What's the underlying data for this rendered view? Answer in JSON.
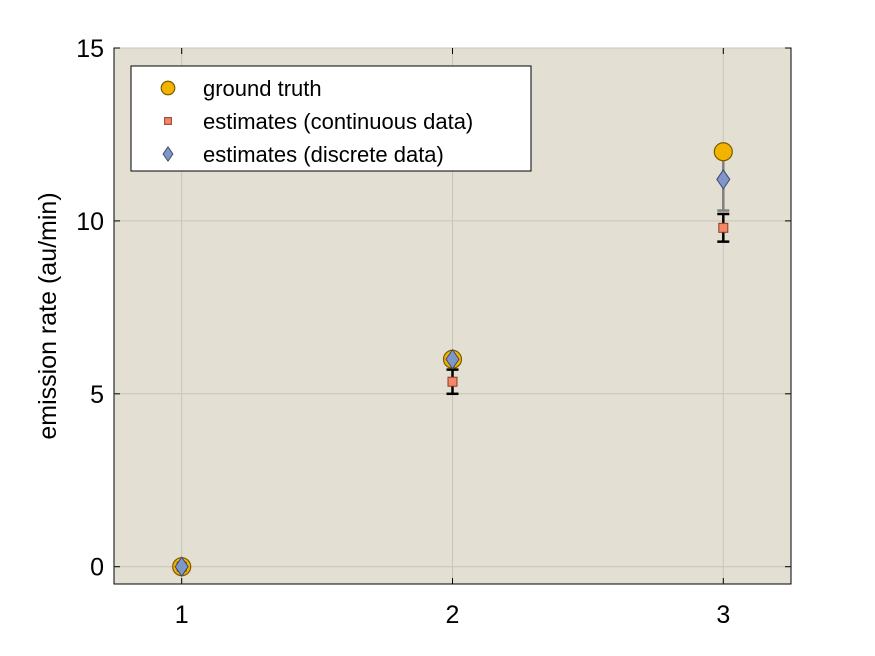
{
  "chart_data": {
    "type": "scatter",
    "title": "",
    "xlabel": "",
    "ylabel": "emission rate (au/min)",
    "xlim": [
      0.75,
      3.25
    ],
    "ylim": [
      -0.5,
      15
    ],
    "x_ticks": [
      "1",
      "2",
      "3"
    ],
    "y_ticks": [
      "0",
      "5",
      "10",
      "15"
    ],
    "grid": true,
    "legend_position": "top-left",
    "series": [
      {
        "name": "ground truth",
        "marker": "circle",
        "color": "#f2b400",
        "x": [
          1,
          2,
          3
        ],
        "y": [
          0,
          6,
          12
        ]
      },
      {
        "name": "estimates (continuous data)",
        "marker": "square",
        "color": "#f4876a",
        "x": [
          1,
          2,
          3
        ],
        "y": [
          0,
          5.35,
          9.8
        ],
        "error_low": [
          0,
          5.0,
          9.4
        ],
        "error_high": [
          0,
          5.7,
          10.2
        ],
        "error_color": "#000000"
      },
      {
        "name": "estimates (discrete data)",
        "marker": "diamond",
        "color": "#7f96c8",
        "x": [
          1,
          2,
          3
        ],
        "y": [
          0,
          6.0,
          11.2
        ],
        "error_low": [
          0,
          6.0,
          10.3
        ],
        "error_high": [
          0,
          6.0,
          12.0
        ],
        "error_color": "#808080"
      }
    ],
    "colors": {
      "plot_background": "#e4dfd3",
      "grid": "#c8c4ba",
      "axes": "#000000"
    }
  }
}
